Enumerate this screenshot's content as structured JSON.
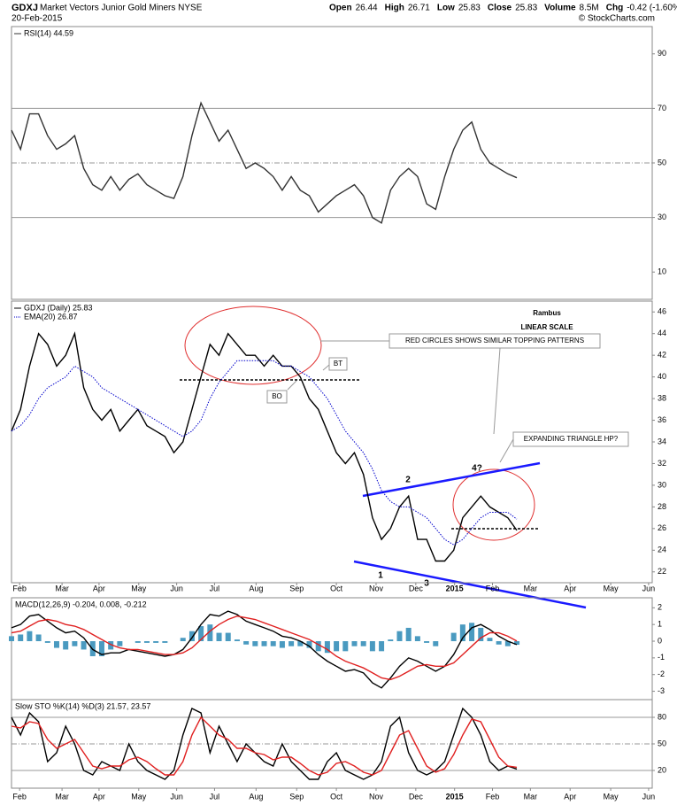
{
  "header": {
    "symbol": "GDXJ",
    "name": "Market Vectors Junior Gold Miners NYSE",
    "date": "20-Feb-2015",
    "quote": [
      "Open",
      "26.44",
      "High",
      "26.71",
      "Low",
      "25.83",
      "Close",
      "25.83",
      "Volume",
      "8.5M",
      "Chg",
      "-0.42 (-1.60%)"
    ],
    "credit": "© StockCharts.com"
  },
  "chart_data": [
    {
      "type": "line",
      "xlim": [
        0,
        71
      ],
      "ylim": [
        0,
        100
      ],
      "yticks": [
        10,
        30,
        50,
        70,
        90
      ],
      "reference_lines": [
        30,
        50,
        70
      ],
      "series": [
        {
          "name": "RSI(14) 44.59",
          "color": "#333333",
          "values": [
            62,
            55,
            68,
            68,
            60,
            55,
            57,
            60,
            48,
            42,
            40,
            45,
            40,
            44,
            46,
            42,
            40,
            38,
            37,
            45,
            60,
            72,
            65,
            58,
            62,
            55,
            48,
            50,
            48,
            45,
            40,
            45,
            40,
            38,
            32,
            35,
            38,
            40,
            42,
            38,
            30,
            28,
            40,
            45,
            48,
            45,
            35,
            33,
            45,
            55,
            62,
            65,
            55,
            50,
            48,
            46,
            44.59
          ]
        }
      ]
    },
    {
      "type": "line",
      "xlim": [
        0,
        71
      ],
      "ylim": [
        21,
        47
      ],
      "yticks": [
        22,
        24,
        26,
        28,
        30,
        32,
        34,
        36,
        38,
        40,
        42,
        44,
        46
      ],
      "xticks": [
        {
          "value": 0.9,
          "label": "Feb"
        },
        {
          "value": 5.6,
          "label": "Mar"
        },
        {
          "value": 9.7,
          "label": "Apr"
        },
        {
          "value": 14.1,
          "label": "May"
        },
        {
          "value": 18.3,
          "label": "Jun"
        },
        {
          "value": 22.5,
          "label": "Jul"
        },
        {
          "value": 27.1,
          "label": "Aug"
        },
        {
          "value": 31.6,
          "label": "Sep"
        },
        {
          "value": 36,
          "label": "Oct"
        },
        {
          "value": 40.4,
          "label": "Nov"
        },
        {
          "value": 44.8,
          "label": "Dec"
        },
        {
          "value": 49.1,
          "label": "2015"
        },
        {
          "value": 53.3,
          "label": "Feb"
        },
        {
          "value": 57.5,
          "label": "Mar"
        },
        {
          "value": 61.9,
          "label": "Apr"
        },
        {
          "value": 66.4,
          "label": "May"
        },
        {
          "value": 70.6,
          "label": "Jun"
        }
      ],
      "series": [
        {
          "name": "GDXJ (Daily) 25.83",
          "color": "#000000",
          "values": [
            35,
            37,
            41,
            44,
            43,
            41,
            42,
            44,
            39,
            37,
            36,
            37,
            35,
            36,
            37,
            35.5,
            35,
            34.5,
            33,
            34,
            37,
            40,
            43,
            42,
            44,
            43,
            42,
            42,
            41,
            42,
            41,
            41,
            40,
            38,
            37,
            35,
            33,
            32,
            33,
            31,
            27,
            25,
            26,
            28,
            29,
            25,
            25,
            23,
            23,
            24,
            27,
            28,
            29,
            28,
            27.5,
            27,
            25.83
          ]
        },
        {
          "name": "EMA(20) 26.87",
          "color": "#0000cc",
          "style": "dotted",
          "values": [
            35,
            35.5,
            36.5,
            38,
            39,
            39.5,
            40,
            41,
            40.5,
            40,
            39,
            38.5,
            38,
            37.5,
            37,
            36.5,
            36,
            35.5,
            35,
            34.5,
            35,
            36,
            38,
            39.5,
            40.5,
            41.5,
            41.5,
            41.5,
            41.5,
            41.5,
            41,
            41,
            40.5,
            40,
            39,
            38,
            36.5,
            35,
            34,
            33,
            31.5,
            29.5,
            28.5,
            28,
            28,
            27.5,
            27,
            26,
            25,
            24.5,
            25,
            26,
            27,
            27.5,
            27.5,
            27.5,
            26.87
          ]
        }
      ],
      "annotations": [
        "Rambus",
        "LINEAR SCALE",
        "RED CIRCLES SHOWS SIMILAR TOPPING PATTERNS",
        "BT",
        "BO",
        "EXPANDING TRIANGLE HP?",
        "1",
        "2",
        "3",
        "4?"
      ]
    },
    {
      "type": "line",
      "title": "MACD(12,26,9) -0.204, 0.008, -0.212",
      "xlim": [
        0,
        71
      ],
      "ylim": [
        -3.5,
        2.6
      ],
      "yticks": [
        -3,
        -2,
        -1,
        0,
        1,
        2
      ],
      "series": [
        {
          "type": "bar",
          "color": "#4a9ac0",
          "values": [
            0.3,
            0.4,
            0.6,
            0.4,
            -0.1,
            -0.4,
            -0.5,
            -0.3,
            -0.5,
            -0.9,
            -0.9,
            -0.5,
            -0.3,
            0,
            -0.1,
            -0.1,
            -0.1,
            -0.1,
            0,
            0.2,
            0.6,
            0.9,
            1.0,
            0.5,
            0.5,
            0.1,
            -0.2,
            -0.3,
            -0.3,
            -0.3,
            -0.4,
            -0.3,
            -0.3,
            -0.4,
            -0.6,
            -0.7,
            -0.6,
            -0.6,
            -0.3,
            -0.3,
            -0.6,
            -0.6,
            0.1,
            0.6,
            0.8,
            0.3,
            -0.1,
            -0.3,
            0,
            0.5,
            1.0,
            1.1,
            0.8,
            0.2,
            -0.2,
            -0.3,
            -0.212
          ]
        },
        {
          "color": "#000000",
          "values": [
            0.8,
            1,
            1.5,
            1.6,
            1.2,
            0.8,
            0.5,
            0.6,
            0.2,
            -0.5,
            -0.8,
            -0.7,
            -0.7,
            -0.5,
            -0.6,
            -0.7,
            -0.8,
            -0.9,
            -0.8,
            -0.5,
            0.2,
            1.0,
            1.6,
            1.5,
            1.8,
            1.6,
            1.2,
            1.0,
            0.8,
            0.6,
            0.3,
            0.2,
            0,
            -0.3,
            -0.8,
            -1.2,
            -1.5,
            -1.8,
            -1.7,
            -1.9,
            -2.5,
            -2.8,
            -2.2,
            -1.5,
            -1.0,
            -1.2,
            -1.5,
            -1.8,
            -1.5,
            -0.8,
            0.2,
            0.8,
            1.0,
            0.7,
            0.3,
            0.0,
            -0.204
          ]
        },
        {
          "color": "#e02020",
          "values": [
            0.5,
            0.6,
            0.9,
            1.2,
            1.3,
            1.2,
            1.0,
            0.9,
            0.7,
            0.4,
            0.1,
            -0.2,
            -0.4,
            -0.5,
            -0.5,
            -0.6,
            -0.7,
            -0.8,
            -0.8,
            -0.7,
            -0.4,
            0.1,
            0.6,
            1.0,
            1.3,
            1.5,
            1.4,
            1.3,
            1.1,
            0.9,
            0.7,
            0.5,
            0.3,
            0.1,
            -0.2,
            -0.5,
            -0.9,
            -1.2,
            -1.4,
            -1.6,
            -1.9,
            -2.2,
            -2.3,
            -2.1,
            -1.8,
            -1.5,
            -1.4,
            -1.5,
            -1.5,
            -1.3,
            -0.8,
            -0.3,
            0.2,
            0.5,
            0.5,
            0.3,
            0.008
          ]
        }
      ]
    },
    {
      "type": "line",
      "title": "Slow STO %K(14) %D(3) 21.57, 23.57",
      "xlim": [
        0,
        71
      ],
      "ylim": [
        0,
        100
      ],
      "yticks": [
        20,
        50,
        80
      ],
      "reference_lines": [
        20,
        50,
        80
      ],
      "xticks": [
        {
          "value": 0.9,
          "label": "Feb"
        },
        {
          "value": 5.6,
          "label": "Mar"
        },
        {
          "value": 9.7,
          "label": "Apr"
        },
        {
          "value": 14.1,
          "label": "May"
        },
        {
          "value": 18.3,
          "label": "Jun"
        },
        {
          "value": 22.5,
          "label": "Jul"
        },
        {
          "value": 27.1,
          "label": "Aug"
        },
        {
          "value": 31.6,
          "label": "Sep"
        },
        {
          "value": 36,
          "label": "Oct"
        },
        {
          "value": 40.4,
          "label": "Nov"
        },
        {
          "value": 44.8,
          "label": "Dec"
        },
        {
          "value": 49.1,
          "label": "2015"
        },
        {
          "value": 53.3,
          "label": "Feb"
        },
        {
          "value": 57.5,
          "label": "Mar"
        },
        {
          "value": 61.9,
          "label": "Apr"
        },
        {
          "value": 66.4,
          "label": "May"
        },
        {
          "value": 70.6,
          "label": "Jun"
        }
      ],
      "series": [
        {
          "color": "#000000",
          "values": [
            80,
            60,
            85,
            75,
            30,
            40,
            70,
            50,
            20,
            15,
            30,
            25,
            20,
            50,
            30,
            20,
            15,
            10,
            20,
            60,
            90,
            85,
            40,
            70,
            50,
            30,
            50,
            40,
            30,
            25,
            50,
            30,
            20,
            10,
            10,
            30,
            40,
            20,
            15,
            10,
            15,
            30,
            70,
            80,
            40,
            20,
            15,
            20,
            30,
            60,
            90,
            80,
            60,
            30,
            20,
            25,
            21.57
          ]
        },
        {
          "color": "#e02020",
          "values": [
            70,
            68,
            75,
            73,
            55,
            45,
            50,
            55,
            40,
            25,
            22,
            25,
            25,
            32,
            35,
            30,
            22,
            15,
            15,
            30,
            60,
            80,
            70,
            60,
            55,
            45,
            45,
            40,
            38,
            32,
            35,
            35,
            28,
            20,
            15,
            18,
            28,
            30,
            25,
            18,
            15,
            20,
            40,
            60,
            65,
            45,
            25,
            18,
            22,
            38,
            60,
            78,
            75,
            55,
            35,
            25,
            23.57
          ]
        }
      ]
    }
  ]
}
